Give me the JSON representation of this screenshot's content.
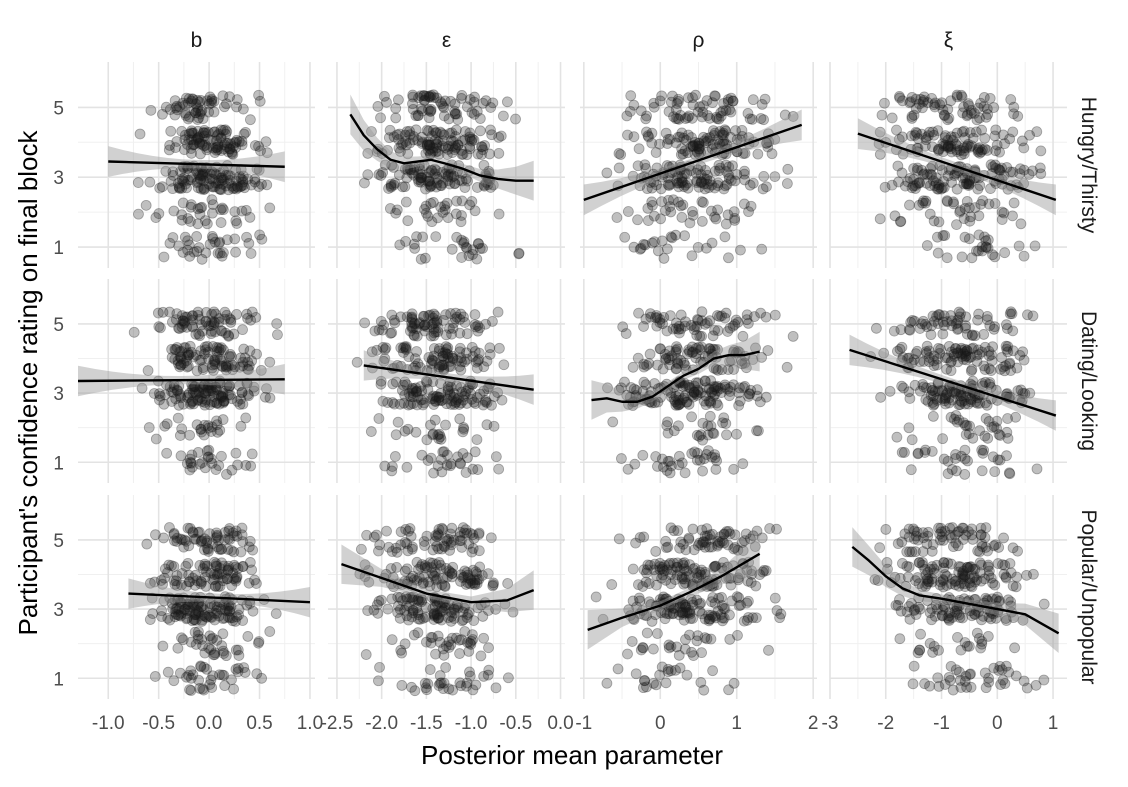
{
  "chart_data": {
    "type": "scatter",
    "xlabel": "Posterior mean parameter",
    "ylabel": "Participant's confidence rating on final block",
    "y_ticks": [
      1,
      3,
      5
    ],
    "ylim": [
      0.4,
      6.3
    ],
    "grid": true,
    "columns": [
      {
        "label": "b",
        "xlim": [
          -1.3,
          1.05
        ],
        "x_ticks": [
          -1.0,
          -0.5,
          0.0,
          0.5,
          1.0
        ],
        "x_tick_labels": [
          "-1.0",
          "-0.5",
          "0.0",
          "0.5",
          "1.0"
        ],
        "x_range": [
          -0.8,
          0.75
        ]
      },
      {
        "label": "ε",
        "xlim": [
          -2.6,
          0.05
        ],
        "x_ticks": [
          -2.5,
          -2.0,
          -1.5,
          -1.0,
          -0.5,
          0.0
        ],
        "x_tick_labels": [
          "-2.5",
          "-2.0",
          "-1.5",
          "-1.0",
          "-0.5",
          "0.0"
        ],
        "x_range": [
          -2.45,
          -0.3
        ]
      },
      {
        "label": "ρ",
        "xlim": [
          -1.05,
          2.05
        ],
        "x_ticks": [
          -1,
          0,
          1,
          2
        ],
        "x_tick_labels": [
          "-1",
          "0",
          "1",
          "2"
        ],
        "x_range": [
          -0.95,
          1.9
        ]
      },
      {
        "label": "ξ",
        "xlim": [
          -3.0,
          1.25
        ],
        "x_ticks": [
          -3,
          -2,
          -1,
          0,
          1
        ],
        "x_tick_labels": [
          "-3",
          "-2",
          "-1",
          "0",
          "1"
        ],
        "x_range": [
          -2.5,
          1.15
        ]
      }
    ],
    "rows": [
      {
        "label": "Hungry/Thirsty"
      },
      {
        "label": "Dating/Looking"
      },
      {
        "label": "Popular/Unpopular"
      }
    ],
    "smooth_fits": [
      [
        {
          "x": [
            -1.0,
            0.75
          ],
          "y": [
            3.45,
            3.3
          ]
        },
        {
          "x": [
            -2.35,
            -2.2,
            -2.05,
            -1.9,
            -1.75,
            -1.6,
            -1.45,
            -1.3,
            -1.1,
            -0.9,
            -0.7,
            -0.5,
            -0.3
          ],
          "y": [
            4.8,
            4.2,
            3.8,
            3.5,
            3.4,
            3.45,
            3.5,
            3.4,
            3.25,
            3.05,
            2.95,
            2.9,
            2.9
          ]
        },
        {
          "x": [
            -1.0,
            1.85
          ],
          "y": [
            2.35,
            4.5
          ]
        },
        {
          "x": [
            -2.5,
            1.05
          ],
          "y": [
            4.25,
            2.35
          ]
        }
      ],
      [
        {
          "x": [
            -1.3,
            0.75
          ],
          "y": [
            3.35,
            3.4
          ]
        },
        {
          "x": [
            -2.2,
            -0.3
          ],
          "y": [
            3.8,
            3.1
          ]
        },
        {
          "x": [
            -0.9,
            -0.7,
            -0.5,
            -0.3,
            -0.1,
            0.1,
            0.3,
            0.5,
            0.7,
            0.9,
            1.1,
            1.3
          ],
          "y": [
            2.8,
            2.85,
            2.75,
            2.75,
            2.9,
            3.2,
            3.5,
            3.7,
            4.0,
            4.1,
            4.1,
            4.2
          ]
        },
        {
          "x": [
            -2.65,
            1.05
          ],
          "y": [
            4.25,
            2.35
          ]
        }
      ],
      [
        {
          "x": [
            -0.8,
            1.0
          ],
          "y": [
            3.45,
            3.2
          ]
        },
        {
          "x": [
            -2.45,
            -2.0,
            -1.5,
            -1.0,
            -0.6,
            -0.3
          ],
          "y": [
            4.3,
            3.9,
            3.45,
            3.2,
            3.25,
            3.55
          ]
        },
        {
          "x": [
            -0.95,
            -0.5,
            0.0,
            0.4,
            0.8,
            1.3
          ],
          "y": [
            2.4,
            2.75,
            3.1,
            3.5,
            3.95,
            4.6
          ]
        },
        {
          "x": [
            -2.6,
            -2.3,
            -2.0,
            -1.7,
            -1.4,
            -1.0,
            -0.5,
            0.0,
            0.5,
            1.1
          ],
          "y": [
            4.8,
            4.4,
            3.95,
            3.6,
            3.4,
            3.3,
            3.15,
            3.0,
            2.85,
            2.3
          ]
        }
      ]
    ],
    "trend_slopes": [
      [
        -0.08,
        -0.35,
        0.75,
        -0.55
      ],
      [
        0.02,
        -0.35,
        0.5,
        -0.5
      ],
      [
        -0.15,
        -0.3,
        0.8,
        -0.45
      ]
    ],
    "points_per_panel": 330,
    "point_style": {
      "color": "#1a1a1a",
      "opacity": 0.28,
      "radius": 5
    },
    "fit_line_color": "#000000",
    "band_color": "#999999"
  }
}
